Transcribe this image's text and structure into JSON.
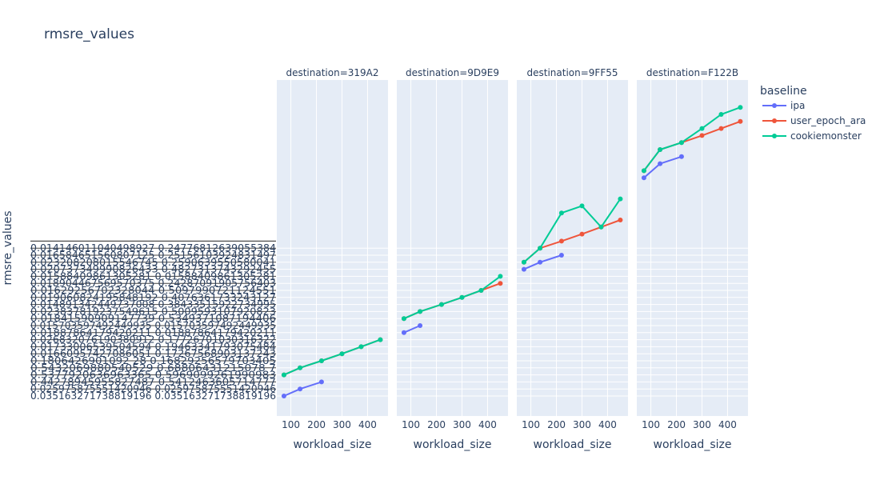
{
  "chart_data": {
    "type": "line",
    "title": "rmsre_values",
    "ylabel": "rmsre_values",
    "xlabel": "workload_size",
    "facet_titles": [
      "destination=319A2",
      "destination=9D9E9",
      "destination=9FF55",
      "destination=F122B"
    ],
    "x_ticks": [
      "100",
      "200",
      "300",
      "400"
    ],
    "xlim": [
      45,
      480
    ],
    "y_categories": [
      "0.035163271738819196 0.035163271738819196",
      "0.025975875551420946 0.025975875551420946",
      "0.44278945955827487 0.5412463605714777",
      "0.537792063696336 0.5969099261990983",
      "0.543206988054052 9 0.68806431215078 7",
      "0.1806426901092 28 0.16829256579703405",
      "0.01660957427086051 0.17267568903137243",
      "0.01733006539504594 0.19463341793075484",
      "0.026832076190380912 0.17726701030316322",
      "0.01887864179420211 0.01887864179420211",
      "0.015703597492449935 0.015703597492449935",
      "0.01841590909147739 0.5349371087194406",
      "0.02383781923754961 5 0.5009593107920823",
      "0.01489134244973700 8 0.38433515922734995",
      "0.019060824195848192 0.4076361733243127",
      "0.01629256702328044 0.5097990721124551",
      "0.018904467569570375 0.24287091905756403",
      "0.015884098613052 81 0.015884098613052 81",
      "0.020737349990826433 0.4827313743292455",
      "0.02320820801554674 5 0.2590639550580041",
      "0.016584651560807125 0.25156103924831497",
      "0.014146011040498927 0.24776812639055384"
    ],
    "y_tick_labels": [
      "0.035163271738819196 0.035163271738819196",
      "0.025975875551420946 0.025975875551420946",
      "0.44278945955827487 0.5412463605714777",
      "0.5377920636963365 0.5969099261990983",
      "0.5432069880540529 0.68806431215078 7",
      "0.1806426901092 28 0.16829256579703405",
      "0.01660957427086051 0.17267568903137243",
      "0.01733006539504594 0.19463341793075484",
      "0.026832076190380912 0.17726701030316322",
      "0.01887864179420211 0.01887864179420211",
      "0.015703597492449935 0.015703597492449935",
      "0.01841590909147739 0.5349371087194406",
      "0.023837819237549615 0.5009593107920823",
      "0.014891342449737008 0.38433515922734995",
      "0.019060824195848192 0.4076361733243127",
      "0.01629256702328044 0.5097990721124551",
      "0.018904467569570375 0.24287091905756403",
      "0.01588409861305281 0.01588409861305281",
      "0.020737349990826433 0.4827313743292455",
      "0.023208208015546745 0.2590639550580041",
      "0.016584651560807125 0.25156103924831497",
      "0.014146011040498927 0.24776812639055384"
    ],
    "legend_title": "baseline",
    "legend_position": "right",
    "series": [
      {
        "name": "ipa",
        "color": "#636efa",
        "facets": [
          {
            "x": [
              73,
              136,
              220
            ],
            "y": [
              0,
              1,
              2
            ]
          },
          {
            "x": [
              73,
              136
            ],
            "y": [
              9,
              10
            ]
          },
          {
            "x": [
              73,
              136,
              220
            ],
            "y": [
              18,
              19,
              20
            ]
          },
          {
            "x": [
              73,
              136,
              220
            ],
            "y": [
              31,
              33,
              34
            ]
          }
        ]
      },
      {
        "name": "user_epoch_ara",
        "color": "#ef553b",
        "facets": [
          {
            "x": [
              73,
              136,
              220,
              300,
              375,
              450
            ],
            "y": [
              3,
              4,
              5,
              6,
              7,
              8
            ]
          },
          {
            "x": [
              73,
              136,
              220,
              300,
              375,
              450
            ],
            "y": [
              11,
              12,
              13,
              14,
              15,
              16
            ]
          },
          {
            "x": [
              73,
              136,
              220,
              300,
              375,
              450
            ],
            "y": [
              19,
              21,
              22,
              23,
              24,
              25
            ]
          },
          {
            "x": [
              73,
              136,
              220,
              300,
              375,
              450
            ],
            "y": [
              32,
              35,
              36,
              37,
              38,
              39
            ]
          }
        ]
      },
      {
        "name": "cookiemonster",
        "color": "#00cc96",
        "facets": [
          {
            "x": [
              73,
              136,
              220,
              300,
              375,
              450
            ],
            "y": [
              3,
              4,
              5,
              6,
              7,
              8
            ]
          },
          {
            "x": [
              73,
              136,
              220,
              300,
              375,
              450
            ],
            "y": [
              11,
              12,
              13,
              14,
              15,
              17
            ]
          },
          {
            "x": [
              73,
              136,
              220,
              300,
              375,
              450
            ],
            "y": [
              19,
              21,
              26,
              27,
              24,
              28
            ]
          },
          {
            "x": [
              73,
              136,
              220,
              300,
              375,
              450
            ],
            "y": [
              32,
              35,
              36,
              38,
              40,
              41
            ]
          }
        ]
      }
    ]
  }
}
